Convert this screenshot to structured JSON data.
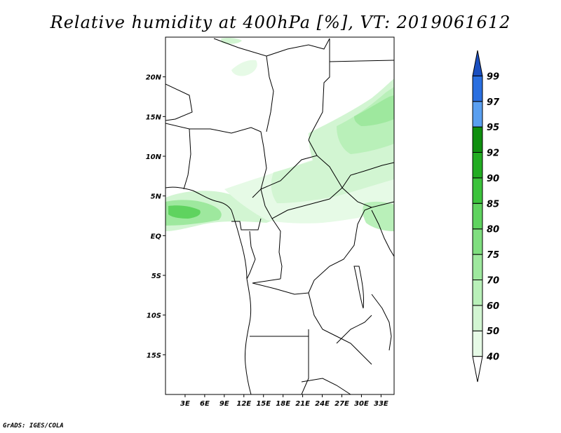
{
  "title": "Relative humidity at 400hPa [%], VT: 2019061612",
  "credit": "GrADS: IGES/COLA",
  "map": {
    "lon_range": [
      0,
      35
    ],
    "lat_range": [
      -20,
      25
    ],
    "lat_labels": [
      {
        "lat": 20,
        "text": "20N"
      },
      {
        "lat": 15,
        "text": "15N"
      },
      {
        "lat": 10,
        "text": "10N"
      },
      {
        "lat": 5,
        "text": "5N"
      },
      {
        "lat": 0,
        "text": "EQ"
      },
      {
        "lat": -5,
        "text": "5S"
      },
      {
        "lat": -10,
        "text": "10S"
      },
      {
        "lat": -15,
        "text": "15S"
      }
    ],
    "lon_labels": [
      {
        "lon": 3,
        "text": "3E"
      },
      {
        "lon": 6,
        "text": "6E"
      },
      {
        "lon": 9,
        "text": "9E"
      },
      {
        "lon": 12,
        "text": "12E"
      },
      {
        "lon": 15,
        "text": "15E"
      },
      {
        "lon": 18,
        "text": "18E"
      },
      {
        "lon": 21,
        "text": "21E"
      },
      {
        "lon": 24,
        "text": "24E"
      },
      {
        "lon": 27,
        "text": "27E"
      },
      {
        "lon": 30,
        "text": "30E"
      },
      {
        "lon": 33,
        "text": "33E"
      }
    ]
  },
  "colorbar": {
    "levels": [
      "40",
      "50",
      "60",
      "70",
      "75",
      "80",
      "85",
      "90",
      "92",
      "95",
      "97",
      "99"
    ],
    "colors": [
      "#ffffff",
      "#e6fae6",
      "#d2f5d2",
      "#b9f0b9",
      "#9ee89e",
      "#7fde7f",
      "#5fd35f",
      "#3cc33c",
      "#22ac22",
      "#0f8f0f",
      "#5a9ff0",
      "#2a6fe0",
      "#1a4fc0"
    ]
  }
}
